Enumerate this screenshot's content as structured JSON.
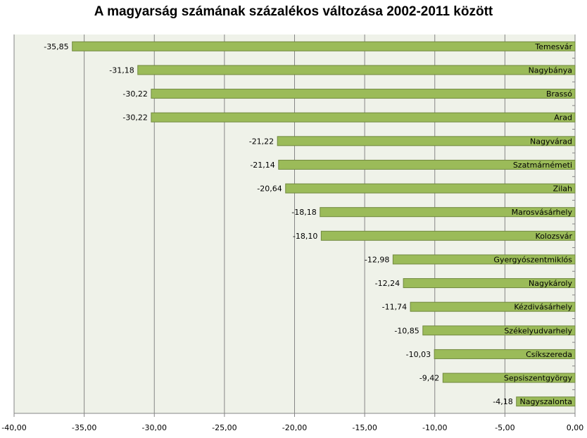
{
  "chart_data": {
    "type": "bar",
    "orientation": "horizontal",
    "title": "A magyarság számának százalékos változása 2002-2011 között",
    "categories": [
      "Temesvár",
      "Nagybánya",
      "Brassó",
      "Arad",
      "Nagyvárad",
      "Szatmárnémeti",
      "Zilah",
      "Marosvásárhely",
      "Kolozsvár",
      "Gyergyószentmiklós",
      "Nagykároly",
      "Kézdivásárhely",
      "Székelyudvarhely",
      "Csíkszereda",
      "Sepsiszentgyörgy",
      "Nagyszalonta"
    ],
    "values": [
      -35.85,
      -31.18,
      -30.22,
      -30.22,
      -21.22,
      -21.14,
      -20.64,
      -18.18,
      -18.1,
      -12.98,
      -12.24,
      -11.74,
      -10.85,
      -10.03,
      -9.42,
      -4.18
    ],
    "data_labels": [
      "-35,85",
      "-31,18",
      "-30,22",
      "-30,22",
      "-21,22",
      "-21,14",
      "-20,64",
      "-18,18",
      "-18,10",
      "-12,98",
      "-12,24",
      "-11,74",
      "-10,85",
      "-10,03",
      "-9,42",
      "-4,18"
    ],
    "xlim": [
      -40,
      0
    ],
    "xticks": [
      -40,
      -35,
      -30,
      -25,
      -20,
      -15,
      -10,
      -5,
      0
    ],
    "xtick_labels": [
      "-40,00",
      "-35,00",
      "-30,00",
      "-25,00",
      "-20,00",
      "-15,00",
      "-10,00",
      "-5,00",
      "0,00"
    ],
    "grid": true,
    "colors": {
      "bar": "#9bbb59",
      "bar_border": "#71893f",
      "plot_bg": "#eff2e9",
      "grid": "#868686"
    }
  }
}
